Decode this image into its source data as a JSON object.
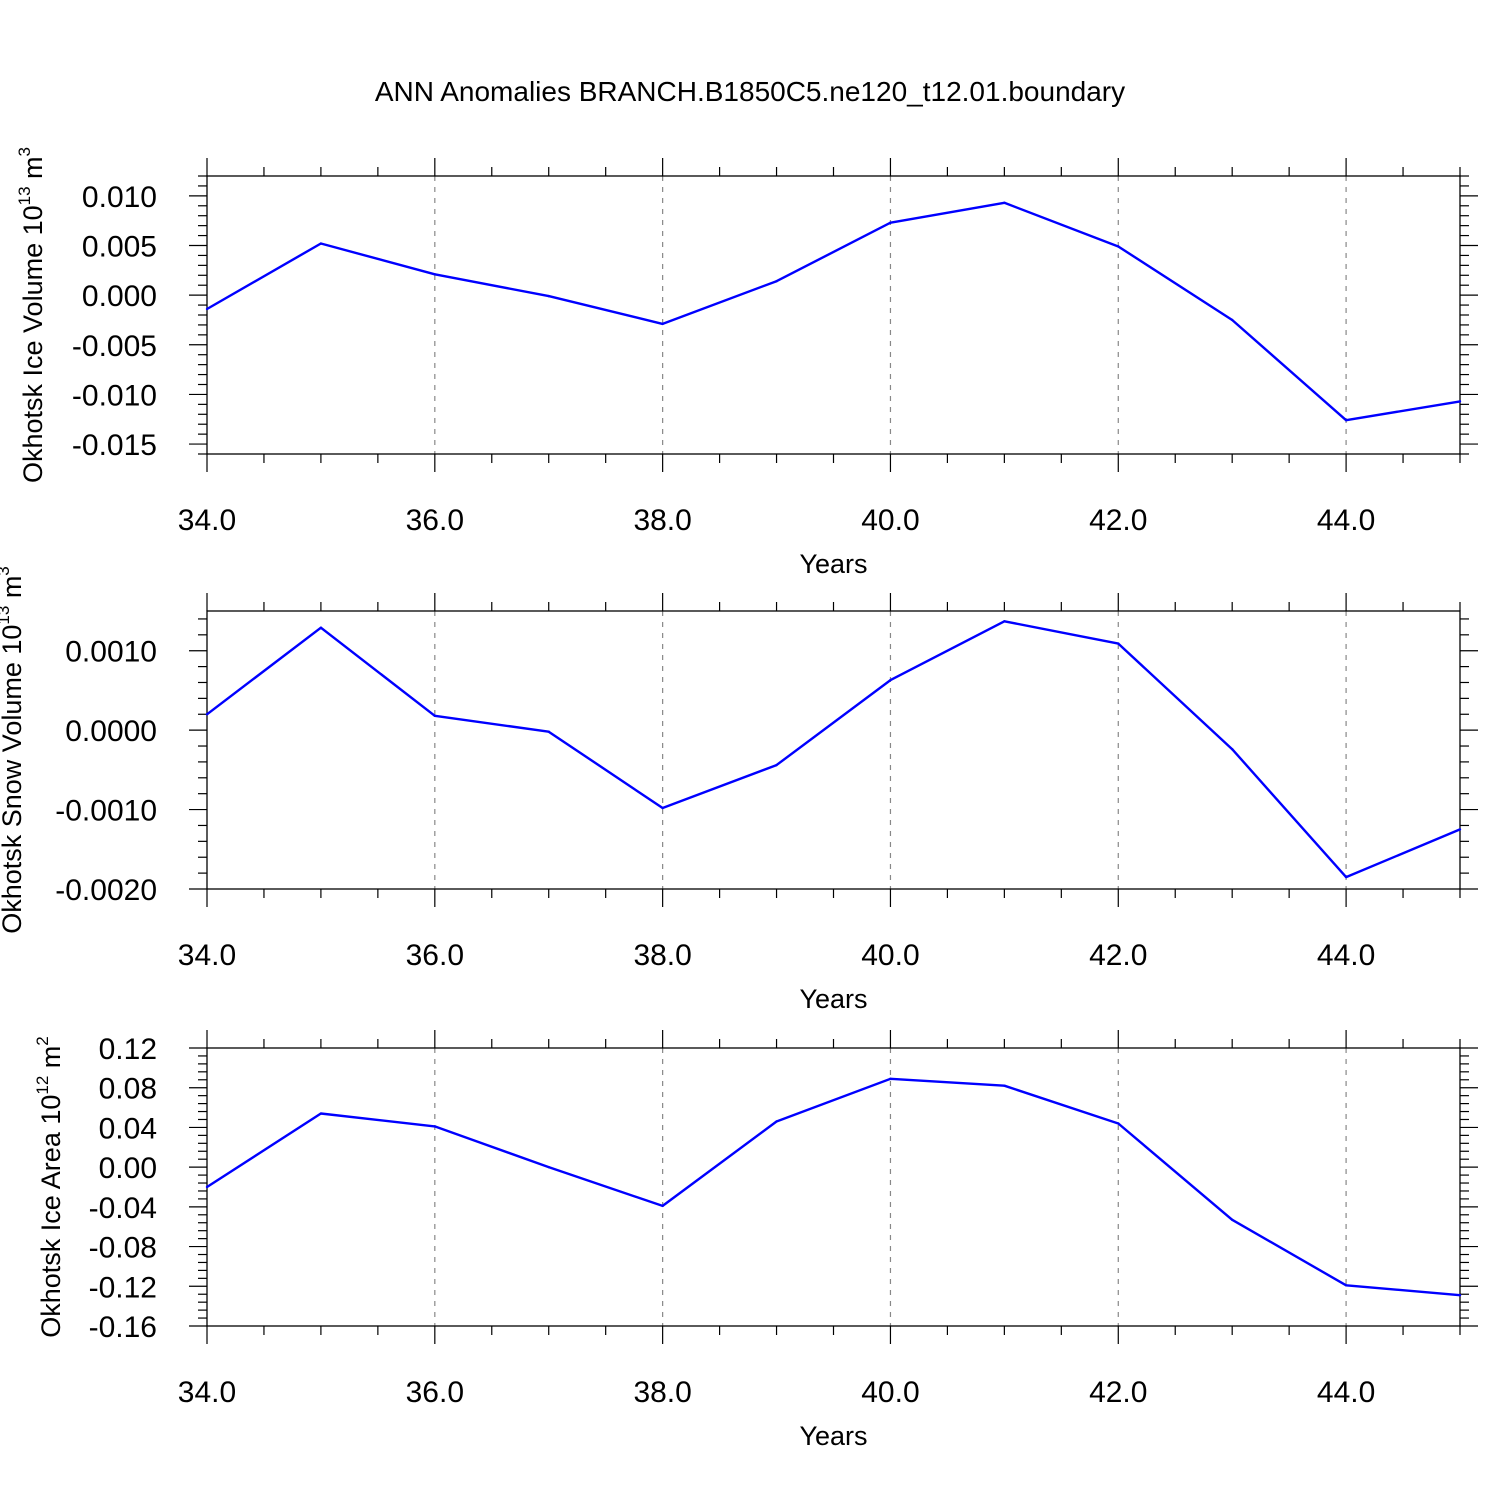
{
  "title": "ANN Anomalies BRANCH.B1850C5.ne120_t12.01.boundary",
  "line_color": "#0000ff",
  "chart_data": [
    {
      "type": "line",
      "ylabel_main": "Okhotsk Ice Volume 10",
      "ylabel_exp": "13",
      "ylabel_unit": " m",
      "ylabel_unit_exp": "3",
      "xlabel": "Years",
      "xlim": [
        34,
        45
      ],
      "ylim": [
        -0.016,
        0.012
      ],
      "x_ticks": [
        "34.0",
        "36.0",
        "38.0",
        "40.0",
        "42.0",
        "44.0"
      ],
      "y_ticks": [
        "0.010",
        "0.005",
        "0.000",
        "-0.005",
        "-0.010",
        "-0.015"
      ],
      "x": [
        34,
        35,
        36,
        37,
        38,
        39,
        40,
        41,
        42,
        43,
        44,
        45
      ],
      "y": [
        -0.0014,
        0.0052,
        0.0021,
        -0.0001,
        -0.0029,
        0.0014,
        0.0073,
        0.0093,
        0.0049,
        -0.0025,
        -0.0126,
        -0.0107
      ]
    },
    {
      "type": "line",
      "ylabel_main": "Okhotsk Snow Volume 10",
      "ylabel_exp": "13",
      "ylabel_unit": " m",
      "ylabel_unit_exp": "3",
      "xlabel": "Years",
      "xlim": [
        34,
        45
      ],
      "ylim": [
        -0.002,
        0.0015
      ],
      "x_ticks": [
        "34.0",
        "36.0",
        "38.0",
        "40.0",
        "42.0",
        "44.0"
      ],
      "y_ticks": [
        "0.0010",
        "0.0000",
        "-0.0010",
        "-0.0020"
      ],
      "x": [
        34,
        35,
        36,
        37,
        38,
        39,
        40,
        41,
        42,
        43,
        44,
        45
      ],
      "y": [
        0.0002,
        0.00129,
        0.00018,
        -2e-05,
        -0.00098,
        -0.00044,
        0.00063,
        0.00137,
        0.00109,
        -0.00024,
        -0.00185,
        -0.00125
      ]
    },
    {
      "type": "line",
      "ylabel_main": "Okhotsk Ice Area 10",
      "ylabel_exp": "12",
      "ylabel_unit": " m",
      "ylabel_unit_exp": "2",
      "xlabel": "Years",
      "xlim": [
        34,
        45
      ],
      "ylim": [
        -0.16,
        0.12
      ],
      "x_ticks": [
        "34.0",
        "36.0",
        "38.0",
        "40.0",
        "42.0",
        "44.0"
      ],
      "y_ticks": [
        "0.12",
        "0.08",
        "0.04",
        "0.00",
        "-0.04",
        "-0.08",
        "-0.12",
        "-0.16"
      ],
      "x": [
        34,
        35,
        36,
        37,
        38,
        39,
        40,
        41,
        42,
        43,
        44,
        45
      ],
      "y": [
        -0.02,
        0.054,
        0.041,
        0.0,
        -0.039,
        0.046,
        0.089,
        0.082,
        0.044,
        -0.053,
        -0.119,
        -0.129
      ]
    }
  ]
}
